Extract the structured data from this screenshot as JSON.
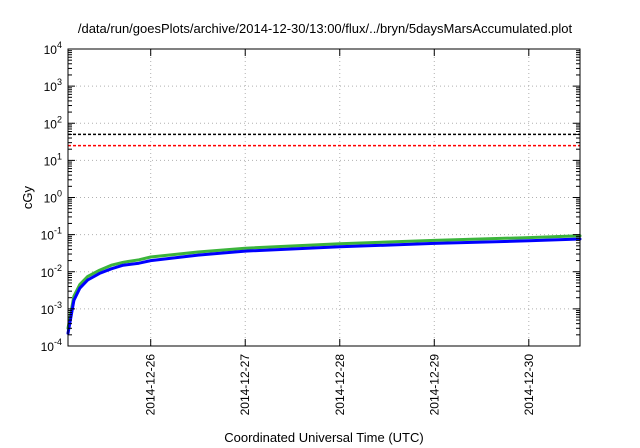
{
  "chart_data": {
    "type": "line",
    "title": "/data/run/goesPlots/archive/2014-12-30/13:00/flux/../bryn/5daysMarsAccumulated.plot",
    "xlabel": "Coordinated Universal Time (UTC)",
    "ylabel": "cGy",
    "y_scale": "log",
    "ylim": [
      0.0001,
      10000
    ],
    "xlim": [
      "2014-12-25T03:00",
      "2014-12-30T13:00"
    ],
    "grid": true,
    "y_ticks": [
      {
        "base": "10",
        "exp": "-4",
        "value": 0.0001
      },
      {
        "base": "10",
        "exp": "-3",
        "value": 0.001
      },
      {
        "base": "10",
        "exp": "-2",
        "value": 0.01
      },
      {
        "base": "10",
        "exp": "-1",
        "value": 0.1
      },
      {
        "base": "10",
        "exp": "0",
        "value": 1
      },
      {
        "base": "10",
        "exp": "1",
        "value": 10
      },
      {
        "base": "10",
        "exp": "2",
        "value": 100
      },
      {
        "base": "10",
        "exp": "3",
        "value": 1000
      },
      {
        "base": "10",
        "exp": "4",
        "value": 10000
      }
    ],
    "x_ticks": [
      {
        "label": "2014-12-26",
        "value": "2014-12-26T00:00"
      },
      {
        "label": "2014-12-27",
        "value": "2014-12-27T00:00"
      },
      {
        "label": "2014-12-28",
        "value": "2014-12-28T00:00"
      },
      {
        "label": "2014-12-29",
        "value": "2014-12-29T00:00"
      },
      {
        "label": "2014-12-30",
        "value": "2014-12-30T00:00"
      }
    ],
    "reference_lines": [
      {
        "value": 50,
        "color": "#000000",
        "style": "dashed"
      },
      {
        "value": 25,
        "color": "#ff0000",
        "style": "dashed"
      }
    ],
    "series": [
      {
        "color": "#3cb43c",
        "x": [
          "2014-12-25T03:00",
          "2014-12-25T04:30",
          "2014-12-25T06:00",
          "2014-12-25T08:00",
          "2014-12-25T11:00",
          "2014-12-25T14:00",
          "2014-12-25T17:00",
          "2014-12-25T21:00",
          "2014-12-26T00:00",
          "2014-12-26T12:00",
          "2014-12-27T00:00",
          "2014-12-28T00:00",
          "2014-12-29T00:00",
          "2014-12-30T00:00",
          "2014-12-30T13:00"
        ],
        "values": [
          0.0003,
          0.0022,
          0.0045,
          0.0075,
          0.011,
          0.015,
          0.018,
          0.021,
          0.025,
          0.034,
          0.043,
          0.057,
          0.07,
          0.083,
          0.093
        ]
      },
      {
        "color": "#0000ff",
        "x": [
          "2014-12-25T03:00",
          "2014-12-25T04:30",
          "2014-12-25T06:00",
          "2014-12-25T08:00",
          "2014-12-25T11:00",
          "2014-12-25T14:00",
          "2014-12-25T17:00",
          "2014-12-25T21:00",
          "2014-12-26T00:00",
          "2014-12-26T12:00",
          "2014-12-27T00:00",
          "2014-12-28T00:00",
          "2014-12-29T00:00",
          "2014-12-30T00:00",
          "2014-12-30T13:00"
        ],
        "values": [
          0.00022,
          0.0017,
          0.0036,
          0.006,
          0.009,
          0.012,
          0.015,
          0.017,
          0.02,
          0.028,
          0.036,
          0.047,
          0.058,
          0.068,
          0.076
        ]
      }
    ]
  }
}
